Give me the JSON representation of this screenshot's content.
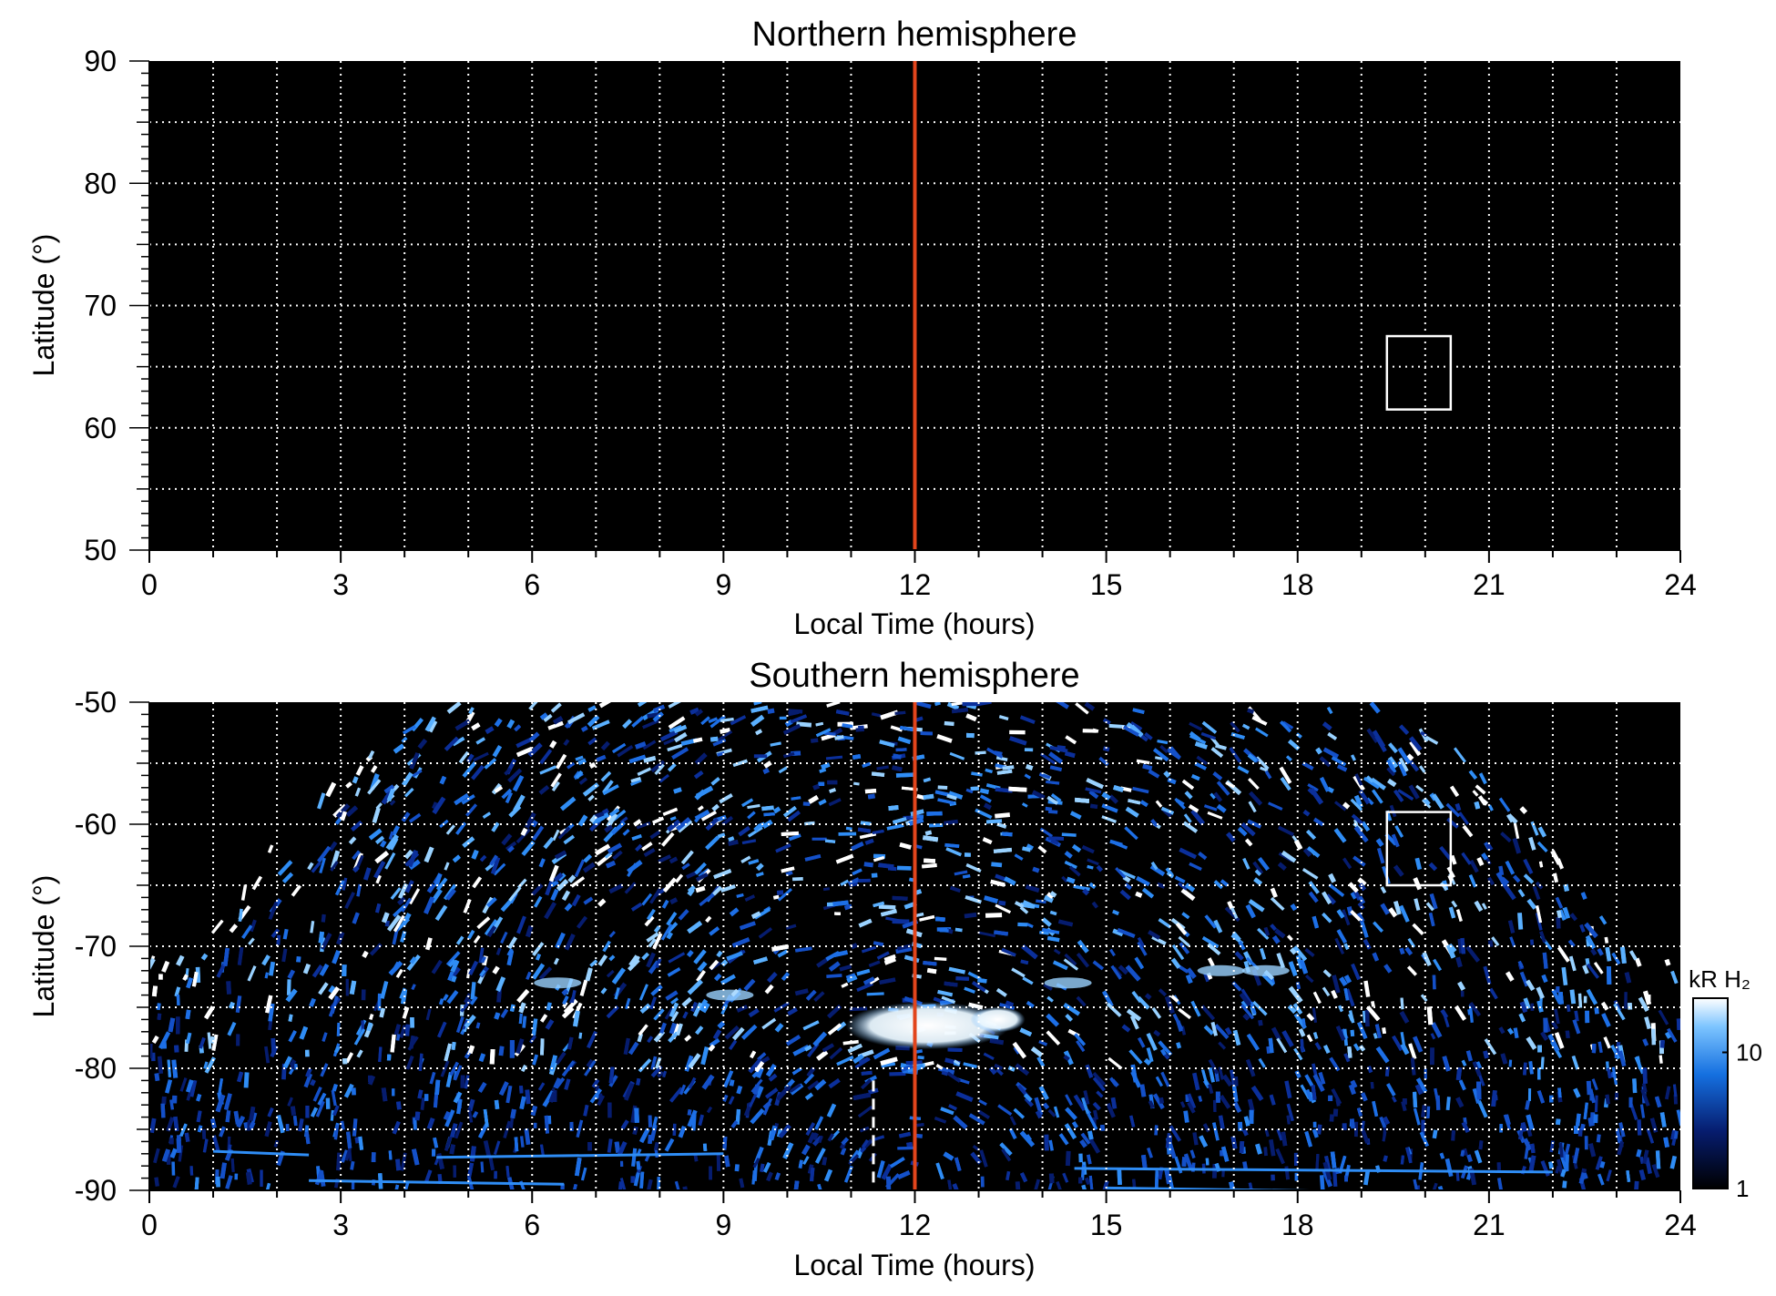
{
  "chart_data": [
    {
      "type": "heatmap",
      "title": "Northern hemisphere",
      "xlabel": "Local Time (hours)",
      "ylabel": "Latitude (°)",
      "xlim": [
        0,
        24
      ],
      "ylim": [
        50,
        90
      ],
      "xticks": [
        "0",
        "3",
        "6",
        "9",
        "12",
        "15",
        "18",
        "21",
        "24"
      ],
      "yticks": [
        "50",
        "60",
        "70",
        "80",
        "90"
      ],
      "grid": true,
      "emission": "none",
      "marker_line_local_time": 12,
      "box": {
        "lt": [
          19.4,
          20.4
        ],
        "lat": [
          61.5,
          67.5
        ]
      }
    },
    {
      "type": "heatmap",
      "title": "Southern hemisphere",
      "xlabel": "Local Time (hours)",
      "ylabel": "Latitude (°)",
      "xlim": [
        0,
        24
      ],
      "ylim": [
        -90,
        -50
      ],
      "xticks": [
        "0",
        "3",
        "6",
        "9",
        "12",
        "15",
        "18",
        "21",
        "24"
      ],
      "yticks": [
        "-90",
        "-80",
        "-70",
        "-60",
        "-50"
      ],
      "grid": true,
      "emission": "auroral",
      "marker_line_local_time": 12,
      "dashed_line_local_time": 11.35,
      "box": {
        "lt": [
          19.4,
          20.4
        ],
        "lat": [
          -65,
          -59
        ]
      },
      "bright_spot": {
        "lt": 12.2,
        "lat": -76.5
      },
      "colorbar": {
        "label": "kR H₂",
        "scale": "log",
        "range": [
          1,
          25
        ],
        "ticks": [
          "1",
          "10"
        ]
      }
    }
  ],
  "colors": {
    "background": "#000000",
    "marker_line": "#e2451c",
    "grid": "#ffffff",
    "emission_low": "#0a2aa0",
    "emission_mid": "#1d8cf0",
    "emission_high": "#ffffff"
  }
}
